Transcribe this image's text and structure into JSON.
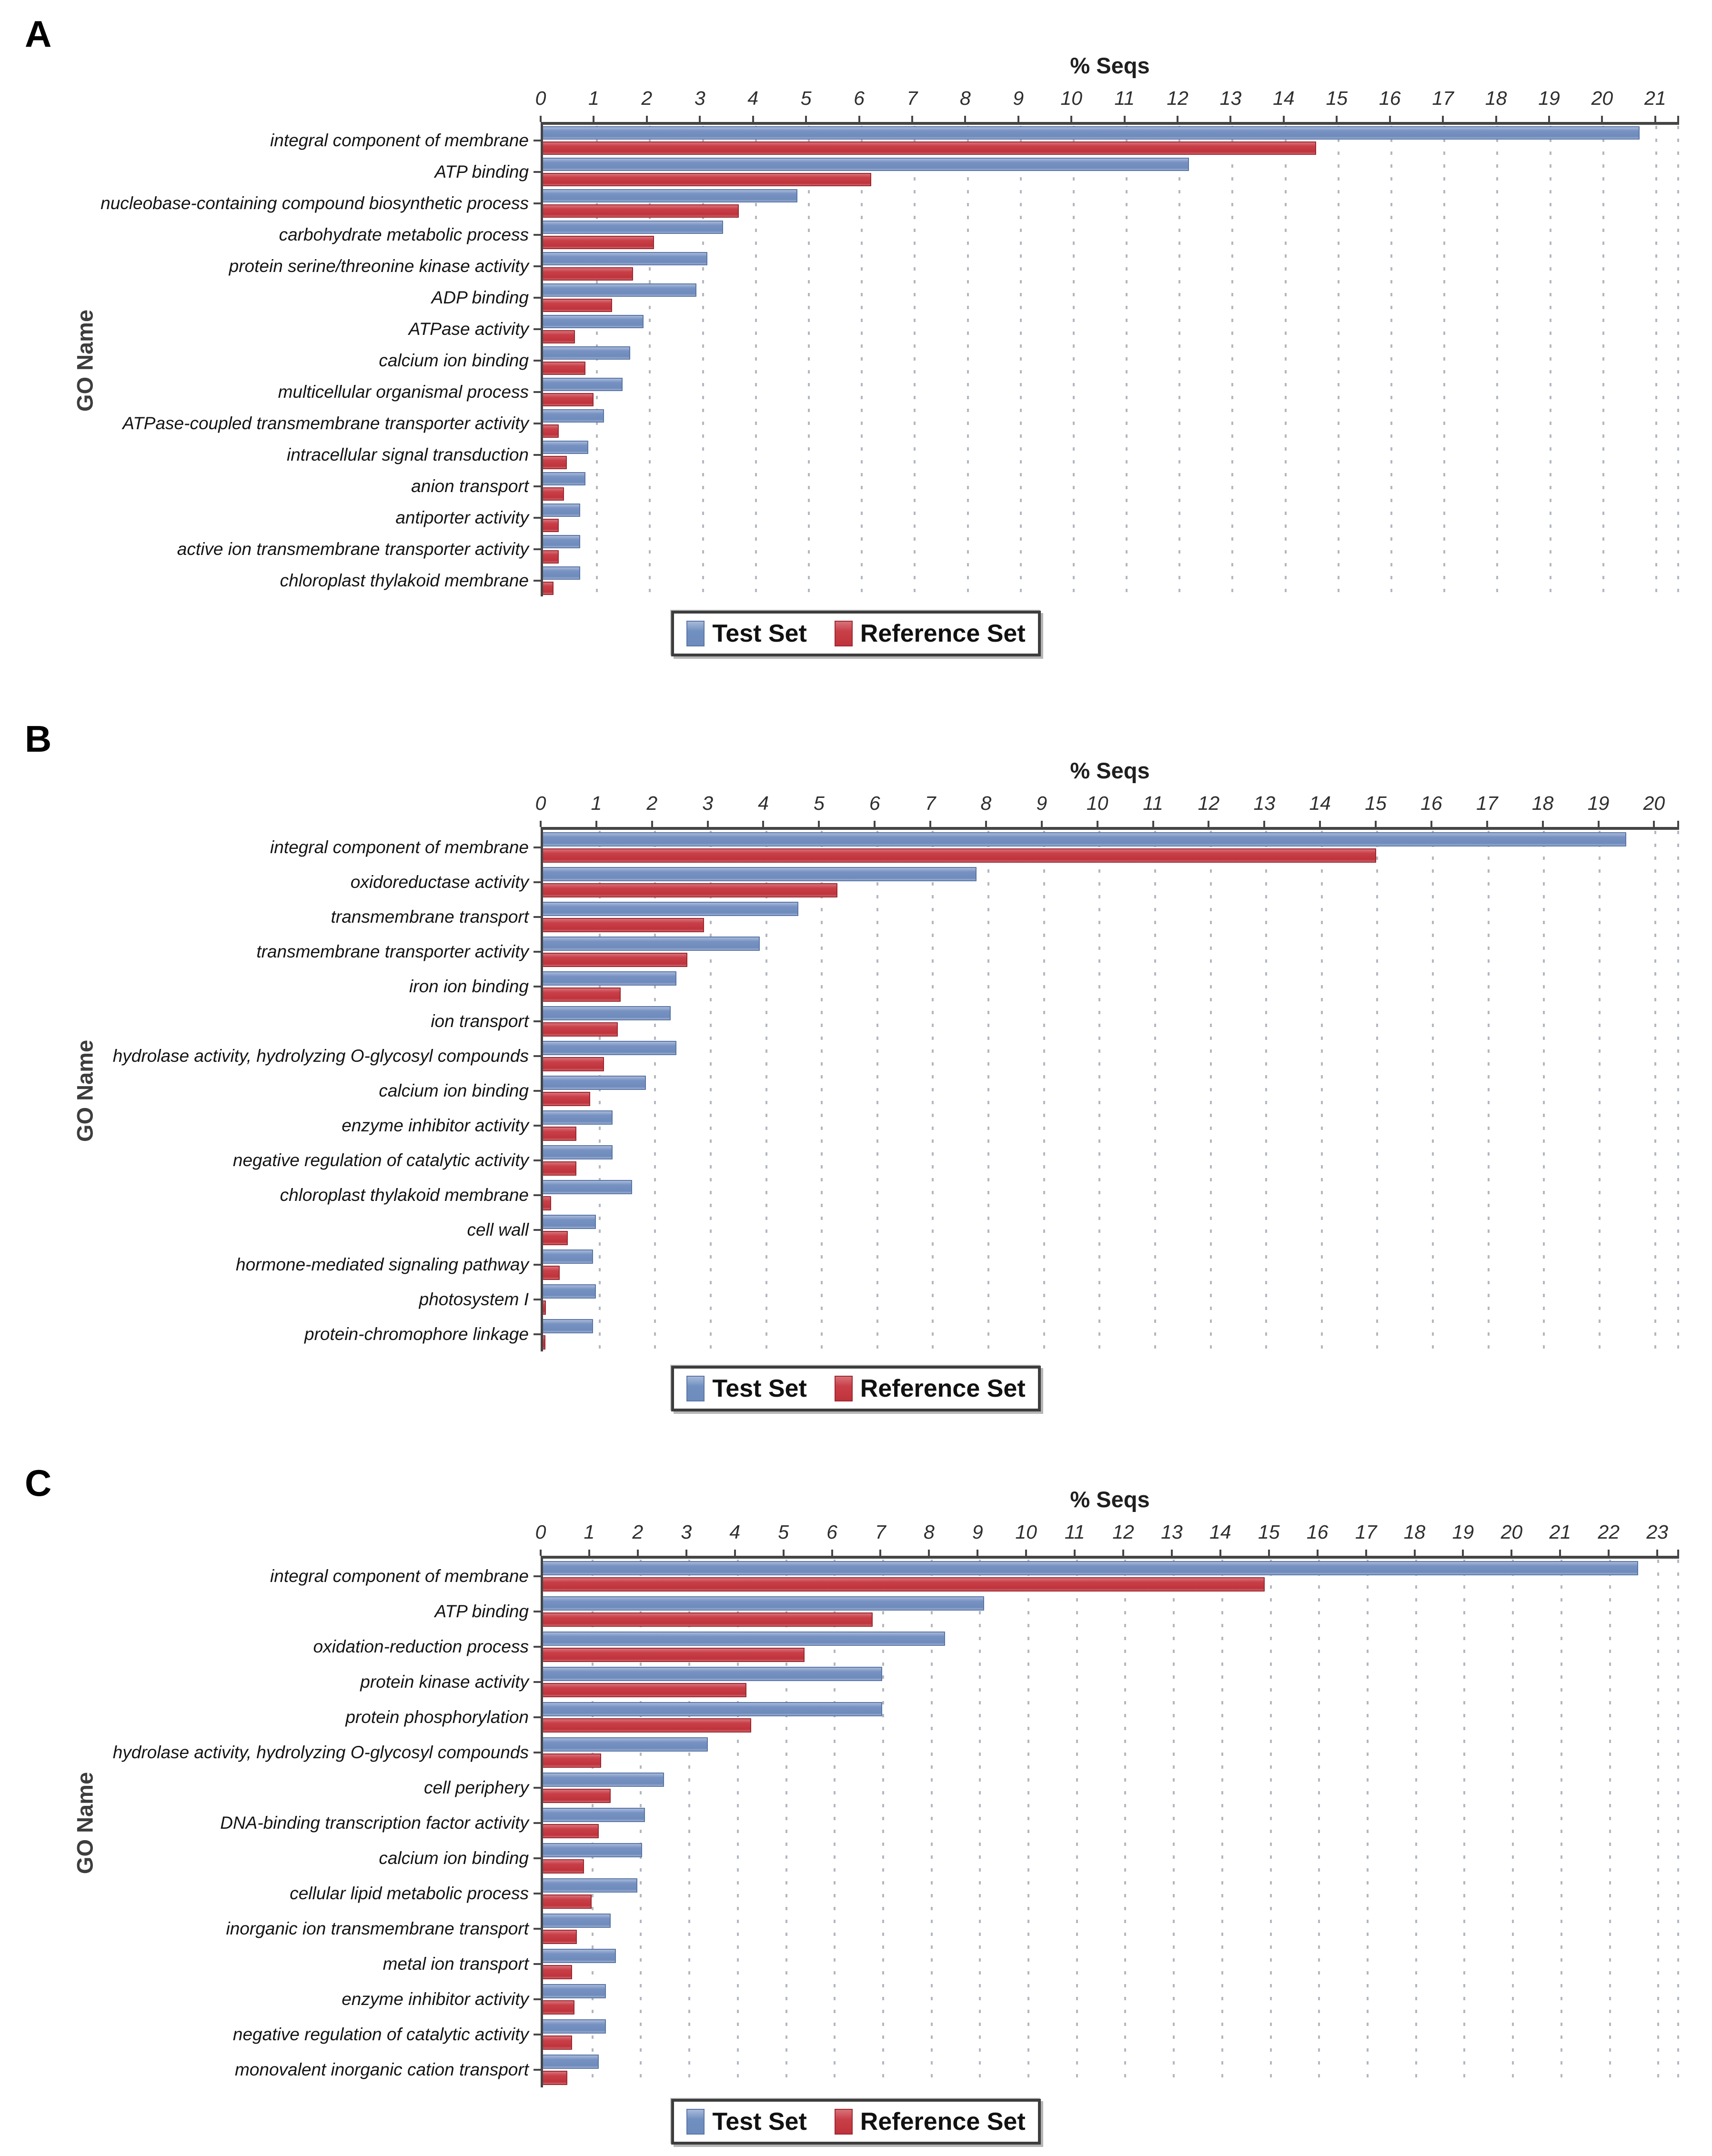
{
  "figure": {
    "x_axis_title": "% Seqs",
    "y_axis_title": "GO Name",
    "legend": {
      "test_label": "Test Set",
      "reference_label": "Reference Set"
    },
    "colors": {
      "test_bar": "#7792c2",
      "reference_bar": "#c93f48",
      "axis": "#454545",
      "gridline": "#b3b7bf"
    }
  },
  "chart_data": [
    {
      "panel": "A",
      "type": "bar",
      "orientation": "horizontal",
      "title": "",
      "xlabel": "% Seqs",
      "ylabel": "GO Name",
      "xlim": [
        0,
        21
      ],
      "tick_step": 1,
      "grid": "vertical-dotted",
      "legend_position": "bottom",
      "categories": [
        "integral component of membrane",
        "ATP binding",
        "nucleobase-containing compound biosynthetic process",
        "carbohydrate metabolic process",
        "protein serine/threonine kinase activity",
        "ADP binding",
        "ATPase activity",
        "calcium ion binding",
        "multicellular organismal process",
        "ATPase-coupled transmembrane transporter activity",
        "intracellular signal transduction",
        "anion transport",
        "antiporter activity",
        "active ion transmembrane transporter activity",
        "chloroplast thylakoid membrane"
      ],
      "series": [
        {
          "name": "Test Set",
          "color": "#7792c2",
          "values": [
            20.7,
            12.2,
            4.8,
            3.4,
            3.1,
            2.9,
            1.9,
            1.65,
            1.5,
            1.15,
            0.85,
            0.8,
            0.7,
            0.7,
            0.7
          ]
        },
        {
          "name": "Reference Set",
          "color": "#c93f48",
          "values": [
            14.6,
            6.2,
            3.7,
            2.1,
            1.7,
            1.3,
            0.6,
            0.8,
            0.95,
            0.3,
            0.45,
            0.4,
            0.3,
            0.3,
            0.2
          ]
        }
      ]
    },
    {
      "panel": "B",
      "type": "bar",
      "orientation": "horizontal",
      "title": "",
      "xlabel": "% Seqs",
      "ylabel": "GO Name",
      "xlim": [
        0,
        20
      ],
      "tick_step": 1,
      "grid": "vertical-dotted",
      "legend_position": "bottom",
      "categories": [
        "integral component of membrane",
        "oxidoreductase activity",
        "transmembrane transport",
        "transmembrane transporter activity",
        "iron ion binding",
        "ion transport",
        "hydrolase activity, hydrolyzing O-glycosyl compounds",
        "calcium ion binding",
        "enzyme inhibitor activity",
        "negative regulation of catalytic activity",
        "chloroplast thylakoid membrane",
        "cell wall",
        "hormone-mediated signaling pathway",
        "photosystem I",
        "protein-chromophore linkage"
      ],
      "series": [
        {
          "name": "Test Set",
          "color": "#7792c2",
          "values": [
            19.5,
            7.8,
            4.6,
            3.9,
            2.4,
            2.3,
            2.4,
            1.85,
            1.25,
            1.25,
            1.6,
            0.95,
            0.9,
            0.95,
            0.9
          ]
        },
        {
          "name": "Reference Set",
          "color": "#c93f48",
          "values": [
            15.0,
            5.3,
            2.9,
            2.6,
            1.4,
            1.35,
            1.1,
            0.85,
            0.6,
            0.6,
            0.15,
            0.45,
            0.3,
            0.05,
            0.04
          ]
        }
      ]
    },
    {
      "panel": "C",
      "type": "bar",
      "orientation": "horizontal",
      "title": "",
      "xlabel": "% Seqs",
      "ylabel": "GO Name",
      "xlim": [
        0,
        23
      ],
      "tick_step": 1,
      "grid": "vertical-dotted",
      "legend_position": "bottom",
      "categories": [
        "integral component of membrane",
        "ATP binding",
        "oxidation-reduction process",
        "protein kinase activity",
        "protein phosphorylation",
        "hydrolase activity, hydrolyzing O-glycosyl compounds",
        "cell periphery",
        "DNA-binding transcription factor activity",
        "calcium ion binding",
        "cellular lipid metabolic process",
        "inorganic ion transmembrane transport",
        "metal ion transport",
        "enzyme inhibitor activity",
        "negative regulation of catalytic activity",
        "monovalent inorganic cation transport"
      ],
      "series": [
        {
          "name": "Test Set",
          "color": "#7792c2",
          "values": [
            22.6,
            9.1,
            8.3,
            7.0,
            7.0,
            3.4,
            2.5,
            2.1,
            2.05,
            1.95,
            1.4,
            1.5,
            1.3,
            1.3,
            1.15
          ]
        },
        {
          "name": "Reference Set",
          "color": "#c93f48",
          "values": [
            14.9,
            6.8,
            5.4,
            4.2,
            4.3,
            1.2,
            1.4,
            1.15,
            0.85,
            1.0,
            0.7,
            0.6,
            0.65,
            0.6,
            0.5
          ]
        }
      ]
    }
  ]
}
